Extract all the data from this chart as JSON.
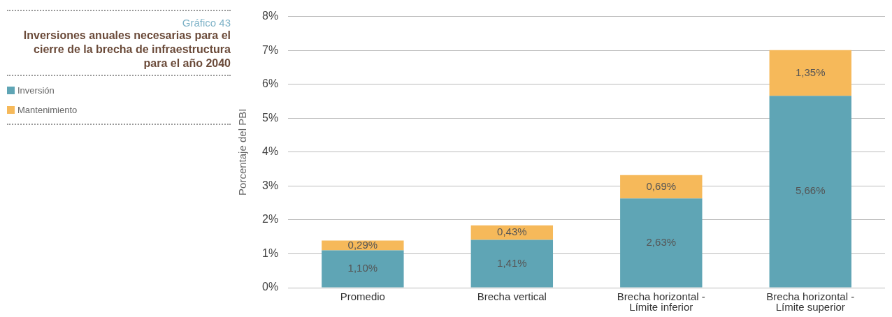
{
  "chart_data": {
    "type": "bar",
    "subtitle": "Gráfico 43",
    "title": "Inversiones anuales necesarias para el cierre de la brecha de infraestructura para el año 2040",
    "ylabel": "Porcentaje del PBI",
    "categories": [
      "Promedio",
      "Brecha vertical",
      "Brecha horizontal - Límite inferior",
      "Brecha horizontal - Límite superior"
    ],
    "stacked": true,
    "legend": "left",
    "grid": "y",
    "ylim": [
      0,
      8
    ],
    "yticks": [
      {
        "value": 0,
        "label": "0%"
      },
      {
        "value": 1,
        "label": "1%"
      },
      {
        "value": 2,
        "label": "2%"
      },
      {
        "value": 3,
        "label": "3%"
      },
      {
        "value": 4,
        "label": "4%"
      },
      {
        "value": 5,
        "label": "5%"
      },
      {
        "value": 6,
        "label": "6%"
      },
      {
        "value": 7,
        "label": "7%"
      },
      {
        "value": 8,
        "label": "8%"
      }
    ],
    "series": [
      {
        "name": "Inversión",
        "color": "#5fa5b5",
        "values": [
          1.1,
          1.41,
          2.63,
          5.66
        ],
        "value_labels": [
          "1,10%",
          "1,41%",
          "2,63%",
          "5,66%"
        ]
      },
      {
        "name": "Mantenimiento",
        "color": "#f6b95a",
        "values": [
          0.29,
          0.43,
          0.69,
          1.35
        ],
        "value_labels": [
          "0,29%",
          "0,43%",
          "0,69%",
          "1,35%"
        ]
      }
    ]
  }
}
